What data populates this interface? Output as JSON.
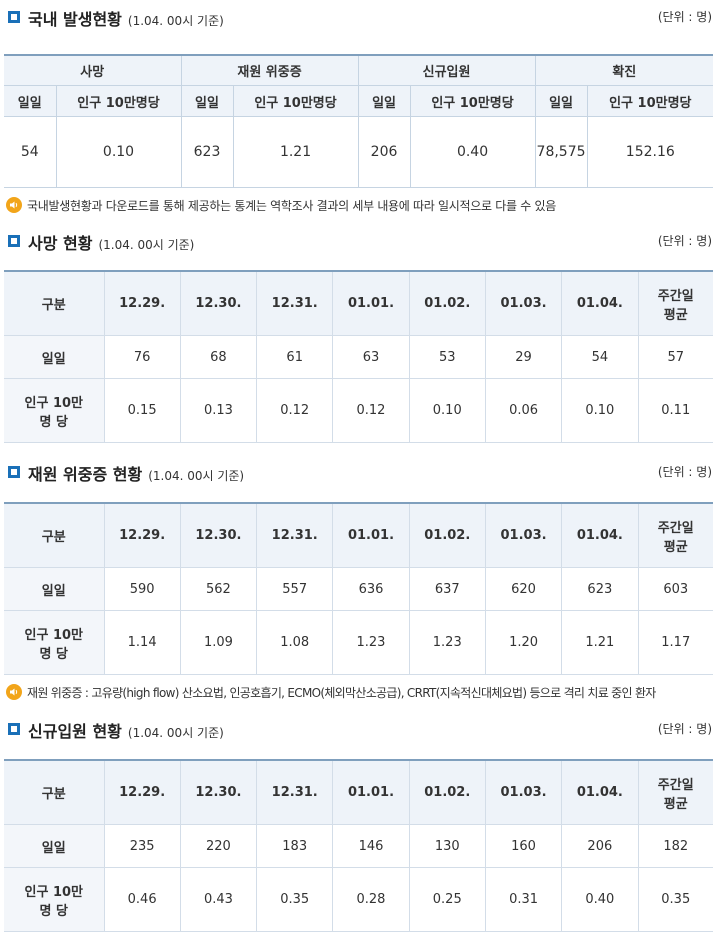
{
  "domestic": {
    "title": "국내 발생현황",
    "basis": "(1.04. 00시 기준)",
    "unit": "(단위 : 명)",
    "groups": [
      "사망",
      "재원 위중증",
      "신규입원",
      "확진"
    ],
    "subheaders": [
      "일일",
      "인구 10만명당",
      "일일",
      "인구 10만명당",
      "일일",
      "인구 10만명당",
      "일일",
      "인구 10만명당"
    ],
    "values": [
      "54",
      "0.10",
      "623",
      "1.21",
      "206",
      "0.40",
      "78,575",
      "152.16"
    ]
  },
  "note1": "국내발생현황과 다운로드를 통해 제공하는 통계는 역학조사 결과의 세부 내용에 따라 일시적으로 다를 수 있음",
  "death": {
    "title": "사망 현황",
    "basis": "(1.04. 00시 기준)",
    "unit": "(단위 : 명)",
    "headers": [
      "구분",
      "12.29.",
      "12.30.",
      "12.31.",
      "01.01.",
      "01.02.",
      "01.03.",
      "01.04."
    ],
    "avg_line1": "주간일",
    "avg_line2": "평균",
    "row1_label": "일일",
    "row1": [
      "76",
      "68",
      "61",
      "63",
      "53",
      "29",
      "54",
      "57"
    ],
    "row2_label_line1": "인구 10만",
    "row2_label_line2": "명 당",
    "row2": [
      "0.15",
      "0.13",
      "0.12",
      "0.12",
      "0.10",
      "0.06",
      "0.10",
      "0.11"
    ]
  },
  "severe": {
    "title": "재원 위중증 현황",
    "basis": "(1.04. 00시 기준)",
    "unit": "(단위 : 명)",
    "headers": [
      "구분",
      "12.29.",
      "12.30.",
      "12.31.",
      "01.01.",
      "01.02.",
      "01.03.",
      "01.04."
    ],
    "avg_line1": "주간일",
    "avg_line2": "평균",
    "row1_label": "일일",
    "row1": [
      "590",
      "562",
      "557",
      "636",
      "637",
      "620",
      "623",
      "603"
    ],
    "row2_label_line1": "인구 10만",
    "row2_label_line2": "명 당",
    "row2": [
      "1.14",
      "1.09",
      "1.08",
      "1.23",
      "1.23",
      "1.20",
      "1.21",
      "1.17"
    ]
  },
  "note2": "재원 위중증 : 고유량(high flow) 산소요법, 인공호흡기, ECMO(체외막산소공급), CRRT(지속적신대체요법) 등으로 격리 치료 중인 환자",
  "admission": {
    "title": "신규입원 현황",
    "basis": "(1.04. 00시 기준)",
    "unit": "(단위 : 명)",
    "headers": [
      "구분",
      "12.29.",
      "12.30.",
      "12.31.",
      "01.01.",
      "01.02.",
      "01.03.",
      "01.04."
    ],
    "avg_line1": "주간일",
    "avg_line2": "평균",
    "row1_label": "일일",
    "row1": [
      "235",
      "220",
      "183",
      "146",
      "130",
      "160",
      "206",
      "182"
    ],
    "row2_label_line1": "인구 10만",
    "row2_label_line2": "명 당",
    "row2": [
      "0.46",
      "0.43",
      "0.35",
      "0.28",
      "0.25",
      "0.31",
      "0.40",
      "0.35"
    ]
  },
  "colors": {
    "accent": "#1a70b8",
    "header_bg": "#eef3f9",
    "note_icon": "#f2a51a",
    "border": "#c6d4e2"
  },
  "icons": {
    "section": "square-bullet-icon",
    "note": "speaker-icon"
  }
}
